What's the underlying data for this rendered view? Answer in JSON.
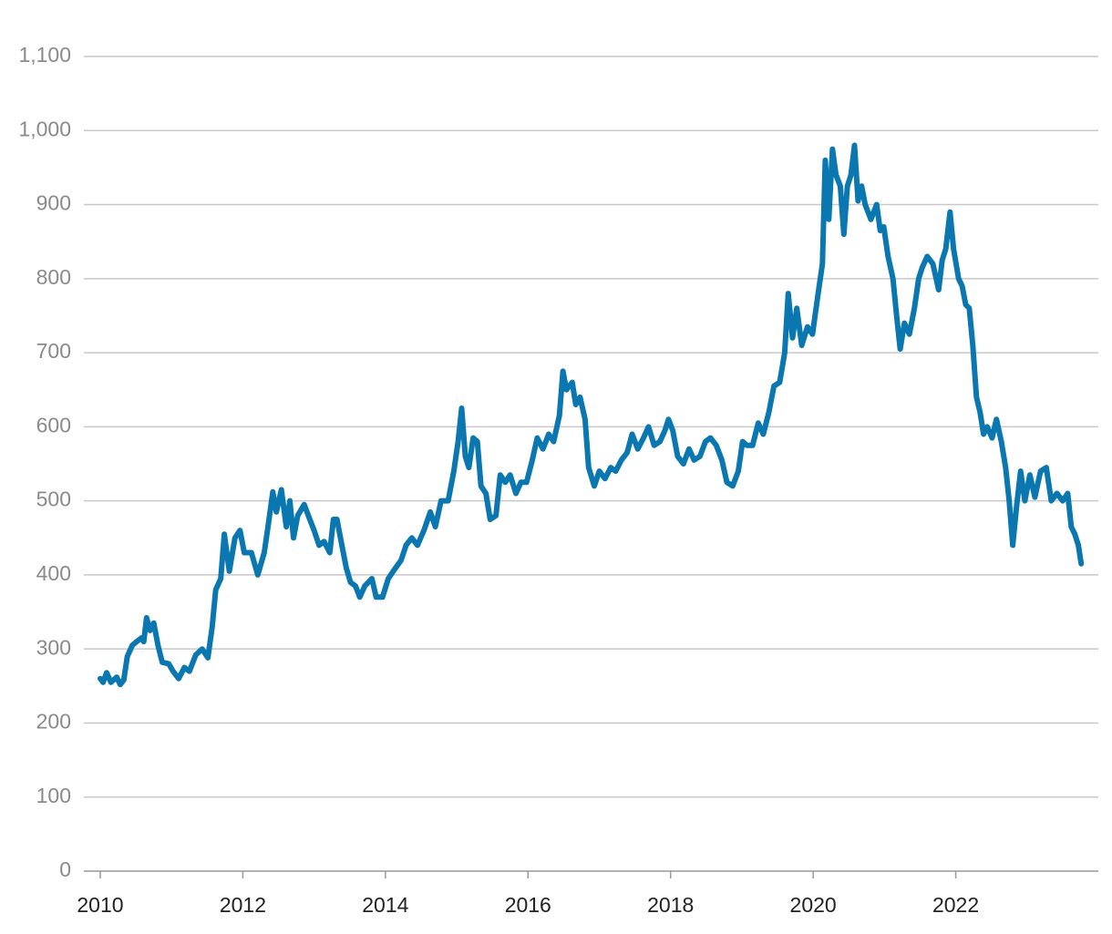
{
  "chart_data": {
    "type": "line",
    "x": [
      2010.0,
      2010.04,
      2010.09,
      2010.15,
      2010.23,
      2010.28,
      2010.33,
      2010.38,
      2010.45,
      2010.51,
      2010.58,
      2010.61,
      2010.65,
      2010.7,
      2010.75,
      2010.81,
      2010.87,
      2010.96,
      2011.02,
      2011.1,
      2011.18,
      2011.25,
      2011.34,
      2011.43,
      2011.51,
      2011.57,
      2011.62,
      2011.69,
      2011.74,
      2011.81,
      2011.89,
      2011.96,
      2012.02,
      2012.12,
      2012.21,
      2012.3,
      2012.36,
      2012.42,
      2012.47,
      2012.54,
      2012.61,
      2012.66,
      2012.71,
      2012.77,
      2012.86,
      2012.94,
      2013.0,
      2013.07,
      2013.14,
      2013.22,
      2013.27,
      2013.32,
      2013.39,
      2013.45,
      2013.51,
      2013.58,
      2013.64,
      2013.71,
      2013.81,
      2013.87,
      2013.96,
      2014.04,
      2014.11,
      2014.22,
      2014.29,
      2014.37,
      2014.45,
      2014.54,
      2014.63,
      2014.7,
      2014.78,
      2014.88,
      2014.96,
      2015.02,
      2015.07,
      2015.12,
      2015.17,
      2015.23,
      2015.29,
      2015.34,
      2015.41,
      2015.47,
      2015.55,
      2015.61,
      2015.68,
      2015.75,
      2015.83,
      2015.9,
      2015.98,
      2016.06,
      2016.13,
      2016.21,
      2016.29,
      2016.36,
      2016.44,
      2016.49,
      2016.54,
      2016.62,
      2016.67,
      2016.73,
      2016.8,
      2016.85,
      2016.93,
      2017.0,
      2017.08,
      2017.16,
      2017.23,
      2017.31,
      2017.39,
      2017.46,
      2017.54,
      2017.62,
      2017.69,
      2017.77,
      2017.85,
      2017.92,
      2017.97,
      2018.03,
      2018.1,
      2018.18,
      2018.26,
      2018.33,
      2018.41,
      2018.49,
      2018.56,
      2018.64,
      2018.72,
      2018.79,
      2018.87,
      2018.95,
      2019.01,
      2019.07,
      2019.15,
      2019.23,
      2019.3,
      2019.38,
      2019.45,
      2019.53,
      2019.6,
      2019.65,
      2019.71,
      2019.77,
      2019.84,
      2019.92,
      2019.99,
      2020.07,
      2020.13,
      2020.17,
      2020.22,
      2020.27,
      2020.32,
      2020.38,
      2020.43,
      2020.48,
      2020.53,
      2020.58,
      2020.63,
      2020.68,
      2020.73,
      2020.81,
      2020.89,
      2020.94,
      2020.99,
      2021.05,
      2021.12,
      2021.17,
      2021.22,
      2021.28,
      2021.35,
      2021.42,
      2021.48,
      2021.53,
      2021.6,
      2021.68,
      2021.76,
      2021.81,
      2021.86,
      2021.92,
      2021.97,
      2022.04,
      2022.09,
      2022.14,
      2022.19,
      2022.24,
      2022.29,
      2022.34,
      2022.39,
      2022.44,
      2022.51,
      2022.57,
      2022.64,
      2022.7,
      2022.75,
      2022.8,
      2022.85,
      2022.91,
      2022.97,
      2023.04,
      2023.11,
      2023.19,
      2023.27,
      2023.34,
      2023.42,
      2023.5,
      2023.57,
      2023.62,
      2023.67,
      2023.72,
      2023.76
    ],
    "values": [
      260,
      255,
      268,
      255,
      262,
      252,
      258,
      290,
      305,
      310,
      315,
      310,
      342,
      325,
      335,
      305,
      282,
      280,
      270,
      260,
      275,
      270,
      292,
      300,
      288,
      330,
      380,
      395,
      455,
      405,
      450,
      460,
      430,
      430,
      400,
      430,
      470,
      512,
      485,
      515,
      465,
      500,
      450,
      480,
      495,
      475,
      460,
      440,
      445,
      430,
      475,
      475,
      440,
      410,
      390,
      385,
      370,
      385,
      395,
      370,
      370,
      395,
      405,
      420,
      440,
      450,
      440,
      460,
      485,
      465,
      500,
      500,
      540,
      580,
      625,
      560,
      545,
      585,
      580,
      520,
      510,
      475,
      480,
      535,
      525,
      535,
      510,
      525,
      525,
      555,
      585,
      570,
      590,
      580,
      615,
      675,
      650,
      660,
      630,
      640,
      610,
      545,
      520,
      540,
      530,
      545,
      540,
      555,
      565,
      590,
      570,
      585,
      600,
      575,
      580,
      595,
      610,
      595,
      560,
      550,
      570,
      555,
      560,
      580,
      585,
      575,
      555,
      525,
      520,
      540,
      580,
      575,
      575,
      605,
      590,
      620,
      655,
      660,
      700,
      780,
      720,
      760,
      710,
      735,
      725,
      780,
      820,
      960,
      880,
      975,
      940,
      925,
      860,
      925,
      940,
      980,
      905,
      925,
      900,
      880,
      900,
      865,
      870,
      830,
      800,
      750,
      705,
      740,
      725,
      760,
      800,
      815,
      830,
      820,
      785,
      825,
      840,
      890,
      840,
      800,
      790,
      765,
      760,
      710,
      640,
      620,
      590,
      600,
      585,
      610,
      580,
      545,
      500,
      440,
      490,
      540,
      500,
      535,
      505,
      540,
      545,
      500,
      510,
      500,
      510,
      465,
      455,
      440,
      415
    ],
    "color": "#0a77b1",
    "xlim": [
      2009.77,
      2024.0
    ],
    "xticks": [
      2010,
      2012,
      2014,
      2016,
      2018,
      2020,
      2022
    ],
    "ylim": [
      0,
      1100
    ],
    "yticks": [
      0,
      100,
      200,
      300,
      400,
      500,
      600,
      700,
      800,
      900,
      {
        "value": 1000,
        "label": "1,000"
      },
      {
        "value": 1100,
        "label": "1,100"
      }
    ],
    "grid": true
  }
}
